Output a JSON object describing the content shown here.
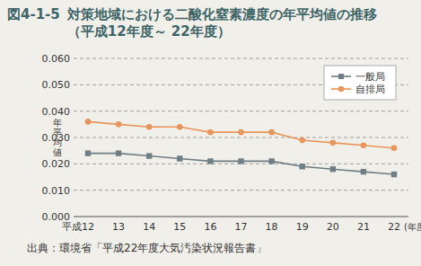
{
  "chart_data": {
    "type": "line",
    "figure_label": "図4-1-5",
    "title": "対策地域における二酸化窒素濃度の年平均値の推移（平成12年度～ 22年度）",
    "y_label": "年平均値",
    "x_label": "(年度)",
    "source": "出典：環境省「平成22年度大気汚染状況報告書」",
    "categories": [
      "平成12",
      "13",
      "14",
      "15",
      "16",
      "17",
      "18",
      "19",
      "20",
      "21",
      "22"
    ],
    "series": [
      {
        "name": "一般局",
        "color": "#6f7e84",
        "marker": "square",
        "values": [
          0.024,
          0.024,
          0.023,
          0.022,
          0.021,
          0.021,
          0.021,
          0.019,
          0.018,
          0.017,
          0.016
        ]
      },
      {
        "name": "自排局",
        "color": "#e8955b",
        "marker": "circle",
        "values": [
          0.036,
          0.035,
          0.034,
          0.034,
          0.032,
          0.032,
          0.032,
          0.029,
          0.028,
          0.027,
          0.026
        ]
      }
    ],
    "ylim": [
      0,
      0.06
    ],
    "yticks": [
      {
        "value": 0,
        "label": "0.000"
      },
      {
        "value": 0.01,
        "label": "0.010"
      },
      {
        "value": 0.02,
        "label": "0.020"
      },
      {
        "value": 0.03,
        "label": "0.030"
      },
      {
        "value": 0.04,
        "label": "0.040"
      },
      {
        "value": 0.05,
        "label": "0.050"
      },
      {
        "value": 0.06,
        "label": "0.060"
      }
    ],
    "grid": true,
    "legend": "upper right"
  }
}
